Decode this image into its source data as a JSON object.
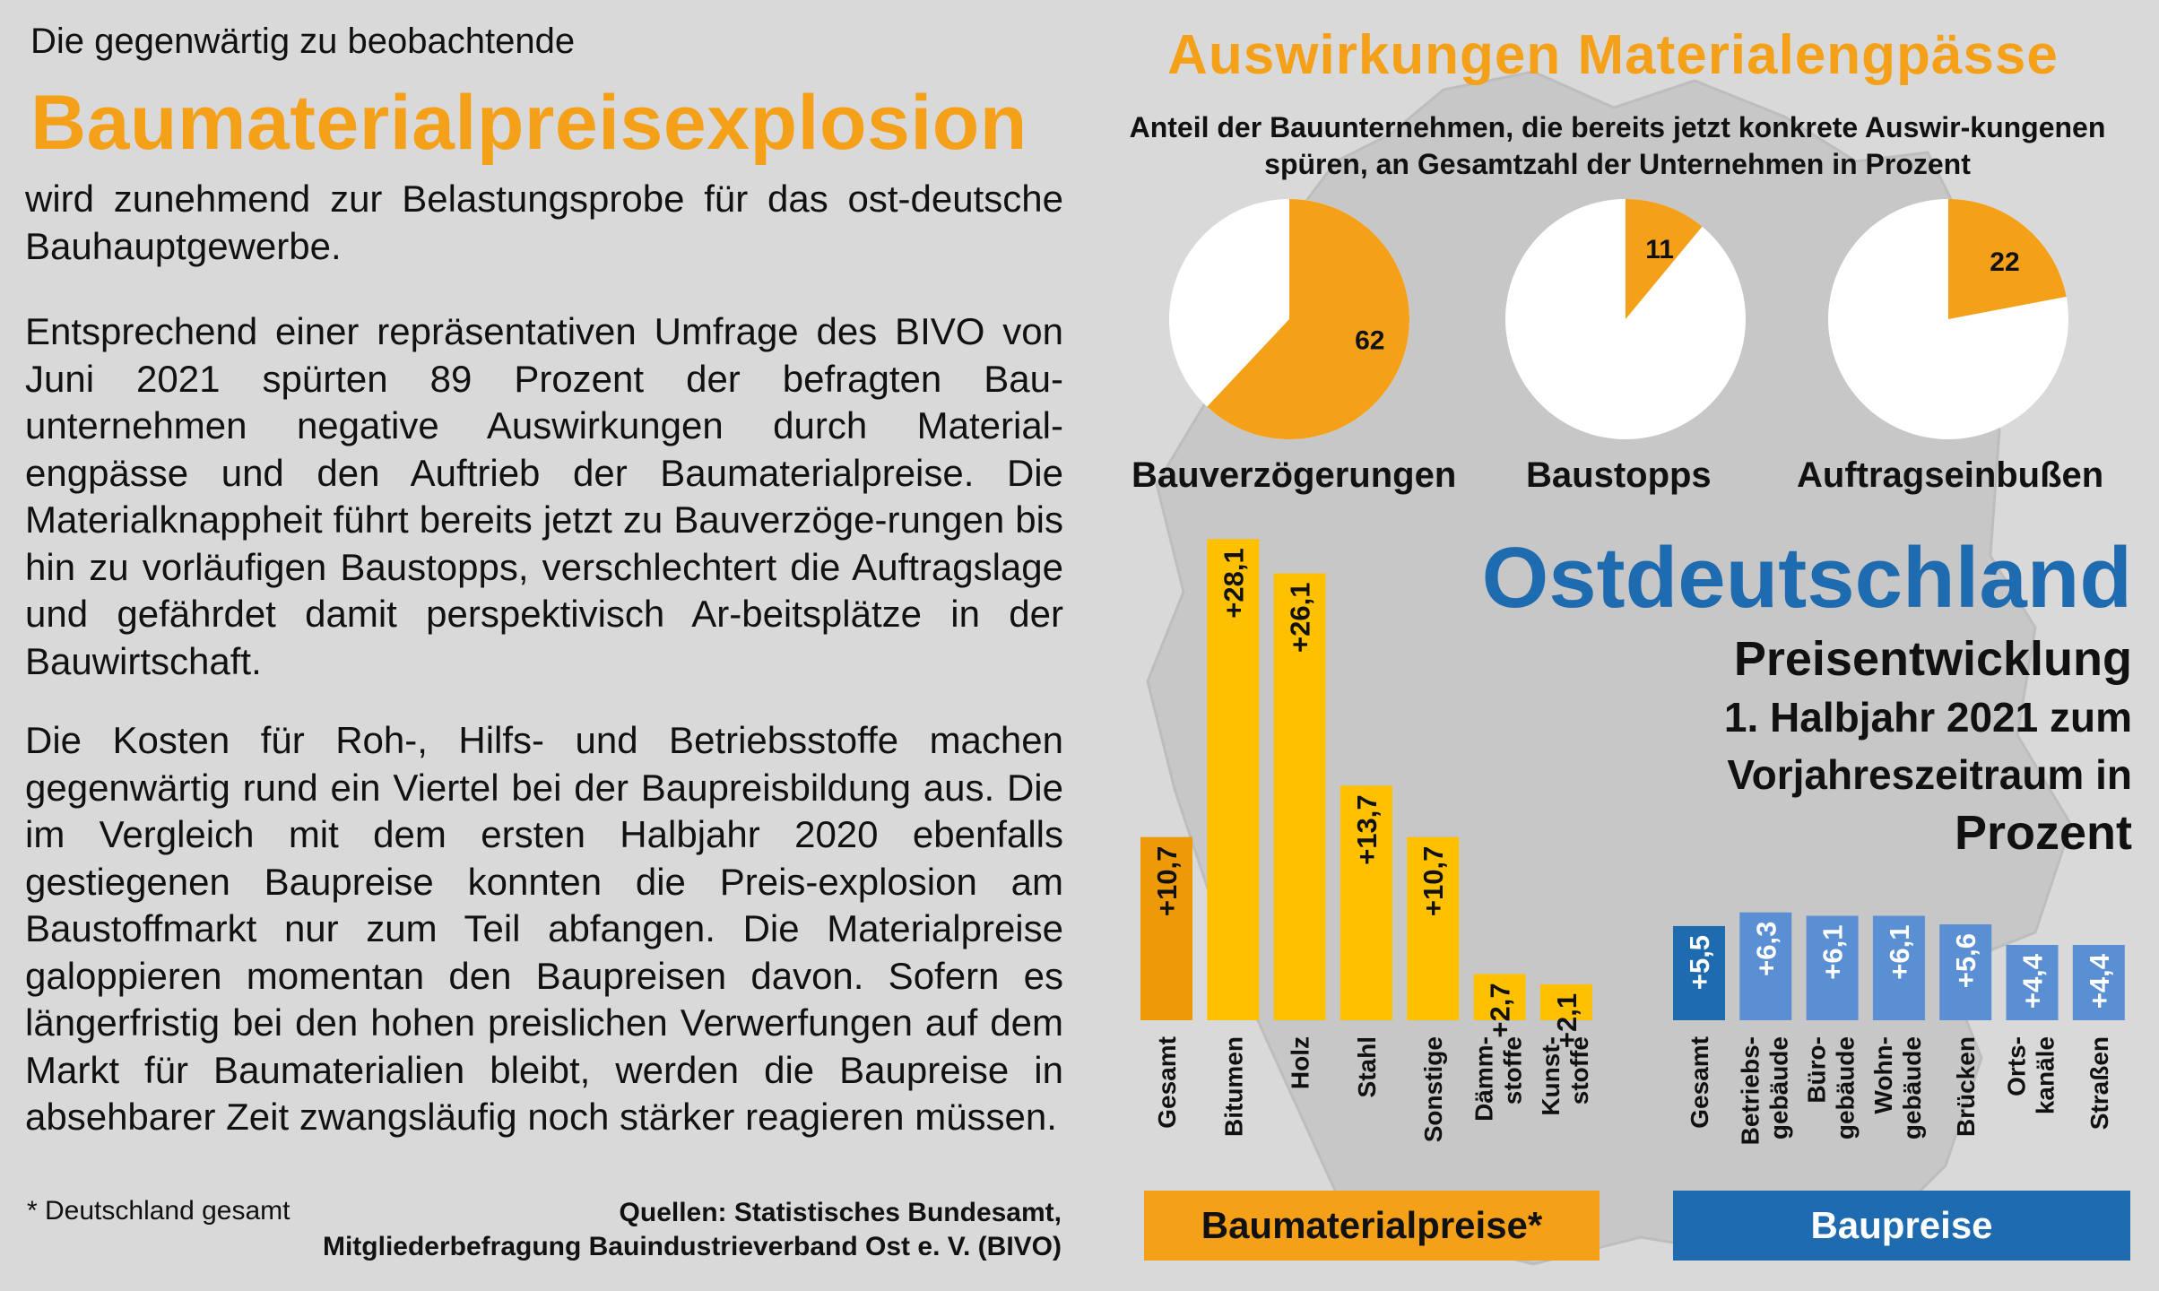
{
  "left": {
    "intro": "Die  gegenwärtig zu beobachtende",
    "headline": "Baumaterialpreisexplosion",
    "p1": "wird zunehmend zur Belastungsprobe für das ost-deutsche Bauhauptgewerbe.",
    "p2": "Entsprechend einer repräsentativen Umfrage des BIVO von Juni 2021 spürten 89 Prozent der befragten Bau-unternehmen negative Auswirkungen durch Material-engpässe und den Auftrieb der Baumaterialpreise. Die Materialknappheit führt bereits jetzt zu Bauverzöge-rungen bis hin zu vorläufigen Baustopps, verschlechtert die Auftragslage und gefährdet damit perspektivisch Ar-beitsplätze in der Bauwirtschaft.",
    "p3": "Die Kosten für Roh-, Hilfs- und Betriebsstoffe machen gegenwärtig rund ein Viertel bei der Baupreisbildung aus. Die im Vergleich mit dem ersten Halbjahr  2020 ebenfalls gestiegenen Baupreise konnten die Preis-explosion am Baustoffmarkt nur zum Teil abfangen. Die Materialpreise galoppieren momentan den Baupreisen davon. Sofern es längerfristig bei den hohen preislichen Verwerfungen auf dem Markt für Baumaterialien bleibt, werden die Baupreise in absehbarer Zeit zwangsläufig noch stärker reagieren müssen.",
    "footnote": "* Deutschland gesamt",
    "sources_line1": "Quellen: Statistisches Bundesamt,",
    "sources_line2": "Mitgliederbefragung Bauindustrieverband Ost e. V. (BIVO)"
  },
  "right": {
    "title": "Auswirkungen Materialengpässe",
    "subtitle": "Anteil der Bauunternehmen, die bereits jetzt konkrete Auswir-kungenen spüren, an Gesamtzahl der Unternehmen in Prozent",
    "region": "Ostdeutschland",
    "preis_line1": "Preisentwicklung",
    "preis_line2a": "1. Halbjahr 2021 zum",
    "preis_line2b": "Vorjahreszeitraum in",
    "preis_line3": "Prozent",
    "box_baumaterial": "Baumaterialpreise*",
    "box_baupreise": "Baupreise"
  },
  "colors": {
    "orange": "#f4a018",
    "orange_dark": "#ee9a06",
    "yellow": "#ffc000",
    "blue_dark": "#1f6bb0",
    "blue_light": "#5b8fd4",
    "background": "#d9d9d9",
    "map": "#c7c7c7"
  },
  "chart_data": [
    {
      "type": "pie",
      "title": "Bauverzögerungen",
      "slices": [
        {
          "label": "62",
          "value": 62
        },
        {
          "label": "",
          "value": 38
        }
      ]
    },
    {
      "type": "pie",
      "title": "Baustopps",
      "slices": [
        {
          "label": "11",
          "value": 11
        },
        {
          "label": "",
          "value": 89
        }
      ]
    },
    {
      "type": "pie",
      "title": "Auftragseinbußen",
      "slices": [
        {
          "label": "22",
          "value": 22
        },
        {
          "label": "",
          "value": 78
        }
      ]
    },
    {
      "type": "bar",
      "title": "Baumaterialpreise*",
      "categories": [
        "Gesamt",
        "Bitumen",
        "Holz",
        "Stahl",
        "Sonstige",
        "Dämm-\nstoffe",
        "Kunst-\nstoffe"
      ],
      "values": [
        10.7,
        28.1,
        26.1,
        13.7,
        10.7,
        2.7,
        2.1
      ],
      "labels": [
        "+10,7",
        "+28,1",
        "+26,1",
        "+13,7",
        "+10,7",
        "+2,7",
        "+2,1"
      ]
    },
    {
      "type": "bar",
      "title": "Baupreise",
      "categories": [
        "Gesamt",
        "Betriebs-\ngebäude",
        "Büro-\ngebäude",
        "Wohn-\ngebäude",
        "Brücken",
        "Orts-\nkanäle",
        "Straßen"
      ],
      "values": [
        5.5,
        6.3,
        6.1,
        6.1,
        5.6,
        4.4,
        4.4
      ],
      "labels": [
        "+5,5",
        "+6,3",
        "+6,1",
        "+6,1",
        "+5,6",
        "+4,4",
        "+4,4"
      ]
    }
  ]
}
